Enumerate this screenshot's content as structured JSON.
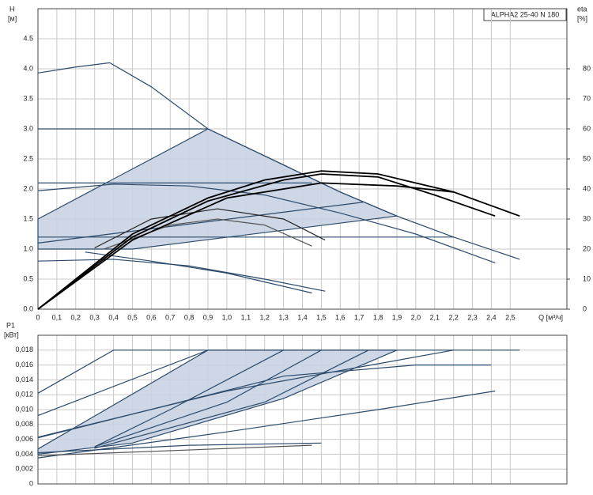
{
  "chart_data": [
    {
      "type": "line",
      "legend_title": "ALPHA2 25-40 N 180",
      "ylabel": "H",
      "yunit": "[м]",
      "y2label": "eta",
      "y2unit": "[%]",
      "xlabel": "Q [м³/ч]",
      "xlim": [
        0,
        2.8
      ],
      "ylim": [
        0,
        5
      ],
      "y2lim": [
        0,
        100
      ],
      "grid": true,
      "xticks": [
        0,
        {
          "value": 0.1,
          "label": "0,1"
        },
        {
          "value": 0.2,
          "label": "0,2"
        },
        {
          "value": 0.3,
          "label": "0,3"
        },
        {
          "value": 0.4,
          "label": "0,4"
        },
        {
          "value": 0.5,
          "label": "0,5"
        },
        {
          "value": 0.6,
          "label": "0,6"
        },
        {
          "value": 0.7,
          "label": "0,7"
        },
        {
          "value": 0.8,
          "label": "0,8"
        },
        {
          "value": 0.9,
          "label": "0,9"
        },
        {
          "value": 1.0,
          "label": "1,0"
        },
        {
          "value": 1.1,
          "label": "1,1"
        },
        {
          "value": 1.2,
          "label": "1,2"
        },
        {
          "value": 1.3,
          "label": "1,3"
        },
        {
          "value": 1.4,
          "label": "1,4"
        },
        {
          "value": 1.5,
          "label": "1,5"
        },
        {
          "value": 1.6,
          "label": "1,6"
        },
        {
          "value": 1.7,
          "label": "1,7"
        },
        {
          "value": 1.8,
          "label": "1,8"
        },
        {
          "value": 1.9,
          "label": "1,9"
        },
        {
          "value": 2.0,
          "label": "2,0"
        },
        {
          "value": 2.1,
          "label": "2,1"
        },
        {
          "value": 2.2,
          "label": "2,2"
        },
        {
          "value": 2.3,
          "label": "2,3"
        },
        {
          "value": 2.4,
          "label": "2,4"
        },
        {
          "value": 2.5,
          "label": "2,5"
        }
      ],
      "yticks": [
        {
          "value": 0,
          "label": "0.0"
        },
        0.5,
        {
          "value": 1,
          "label": "1.0"
        },
        1.5,
        {
          "value": 2,
          "label": "2.0"
        },
        2.5,
        {
          "value": 3,
          "label": "3.0"
        },
        3.5,
        {
          "value": 4,
          "label": "4.0"
        },
        4.5
      ],
      "y2ticks": [
        0,
        10,
        20,
        30,
        40,
        50,
        60,
        70,
        80
      ],
      "series": [
        {
          "color": "#2b4a6b",
          "fill": "#c9d3e2",
          "x": [
            0,
            0.9,
            1.3,
            1.6,
            1.9,
            0.5,
            0
          ],
          "values": [
            1.5,
            3.0,
            2.4,
            1.95,
            1.55,
            1.0,
            1.0
          ]
        },
        {
          "color": "#2b4a6b",
          "x": [
            0,
            0.2,
            0.38,
            0.6,
            0.9,
            1.3,
            1.6,
            1.9,
            2.2,
            2.55
          ],
          "values": [
            3.93,
            4.03,
            4.1,
            3.7,
            3.0,
            2.4,
            1.95,
            1.55,
            1.2,
            0.83
          ]
        },
        {
          "color": "#2b4a6b",
          "x": [
            0,
            0.9
          ],
          "values": [
            3.0,
            3.0
          ]
        },
        {
          "color": "#2b4a6b",
          "x": [
            0,
            1.45
          ],
          "values": [
            2.1,
            2.1
          ]
        },
        {
          "color": "#2b4a6b",
          "x": [
            0,
            0.4,
            0.8,
            1.2,
            1.6,
            2.0,
            2.42
          ],
          "values": [
            1.97,
            2.08,
            2.05,
            1.9,
            1.6,
            1.25,
            0.77
          ]
        },
        {
          "color": "#2b4a6b",
          "x": [
            0,
            2.2
          ],
          "values": [
            1.2,
            1.2
          ]
        },
        {
          "color": "#2b4a6b",
          "x": [
            0,
            1.72
          ],
          "values": [
            1.1,
            1.78
          ]
        },
        {
          "color": "#2b4a6b",
          "x": [
            0,
            0.4,
            0.8,
            1.2,
            1.52
          ],
          "values": [
            0.8,
            0.83,
            0.72,
            0.5,
            0.3
          ]
        },
        {
          "color": "#2b4a6b",
          "x": [
            0.25,
            0.6,
            1.0,
            1.45
          ],
          "values": [
            0.95,
            0.8,
            0.6,
            0.27
          ]
        },
        {
          "color": "#222222",
          "x": [
            0.3,
            0.6,
            0.95,
            1.3,
            1.52
          ],
          "values": [
            1.02,
            1.5,
            1.67,
            1.5,
            1.15
          ]
        },
        {
          "color": "#555555",
          "x": [
            0.35,
            0.7,
            0.95,
            1.2,
            1.45
          ],
          "values": [
            1.0,
            1.4,
            1.5,
            1.4,
            1.05
          ]
        },
        {
          "color": "#000000",
          "axis": "y2",
          "x": [
            0,
            0.2,
            0.5,
            0.9,
            1.2,
            1.5,
            1.8,
            2.2,
            2.55
          ],
          "values": [
            0,
            10,
            25,
            37,
            43,
            46,
            45,
            39,
            31
          ]
        },
        {
          "color": "#000000",
          "axis": "y2",
          "x": [
            0,
            0.5,
            0.9,
            1.3,
            1.5,
            1.8,
            2.1,
            2.42
          ],
          "values": [
            0,
            24,
            36,
            43,
            45,
            44,
            38,
            31
          ]
        },
        {
          "color": "#000000",
          "axis": "y2",
          "x": [
            0,
            0.5,
            1.0,
            1.5,
            1.9,
            2.2
          ],
          "values": [
            0,
            23,
            37,
            42,
            41,
            39
          ]
        }
      ]
    },
    {
      "type": "line",
      "ylabel": "P1",
      "yunit": "[кВт]",
      "xlim": [
        0,
        2.8
      ],
      "ylim": [
        0,
        0.02
      ],
      "grid": true,
      "yticks": [
        0,
        {
          "value": 0.002,
          "label": "0,002"
        },
        {
          "value": 0.004,
          "label": "0,004"
        },
        {
          "value": 0.006,
          "label": "0,006"
        },
        {
          "value": 0.008,
          "label": "0,008"
        },
        {
          "value": 0.01,
          "label": "0,010"
        },
        {
          "value": 0.012,
          "label": "0,012"
        },
        {
          "value": 0.014,
          "label": "0,014"
        },
        {
          "value": 0.016,
          "label": "0,016"
        },
        {
          "value": 0.018,
          "label": "0,018"
        }
      ],
      "series": [
        {
          "color": "#2b4a6b",
          "fill": "#c9d3e2",
          "x": [
            0,
            0.9,
            1.9,
            1.3,
            0.5,
            0
          ],
          "values": [
            0.0047,
            0.018,
            0.018,
            0.0115,
            0.0055,
            0.004
          ]
        },
        {
          "color": "#2b4a6b",
          "x": [
            0,
            0.4,
            2.55
          ],
          "values": [
            0.0122,
            0.018,
            0.018
          ]
        },
        {
          "color": "#2b4a6b",
          "x": [
            0,
            0.9
          ],
          "values": [
            0.0092,
            0.018
          ]
        },
        {
          "color": "#2b4a6b",
          "x": [
            0,
            1.0,
            2.2
          ],
          "values": [
            0.0063,
            0.0125,
            0.018
          ]
        },
        {
          "color": "#2b4a6b",
          "x": [
            0,
            1.3,
            2.0,
            2.4
          ],
          "values": [
            0.0062,
            0.0145,
            0.016,
            0.016
          ]
        },
        {
          "color": "#2b4a6b",
          "x": [
            0,
            1.0,
            1.8,
            2.42
          ],
          "values": [
            0.0035,
            0.007,
            0.01,
            0.0125
          ]
        },
        {
          "color": "#2b4a6b",
          "x": [
            0,
            0.8,
            1.5
          ],
          "values": [
            0.0042,
            0.0052,
            0.0055
          ]
        },
        {
          "color": "#555555",
          "x": [
            0,
            1.45
          ],
          "values": [
            0.0038,
            0.0052
          ]
        },
        {
          "color": "#2b4a6b",
          "x": [
            0.3,
            0.7,
            1.3
          ],
          "values": [
            0.005,
            0.01,
            0.018
          ]
        },
        {
          "color": "#2b4a6b",
          "x": [
            0.3,
            1.0,
            1.5
          ],
          "values": [
            0.005,
            0.011,
            0.018
          ]
        },
        {
          "color": "#2b4a6b",
          "x": [
            0.3,
            1.2,
            1.75
          ],
          "values": [
            0.0048,
            0.011,
            0.018
          ]
        }
      ]
    }
  ]
}
